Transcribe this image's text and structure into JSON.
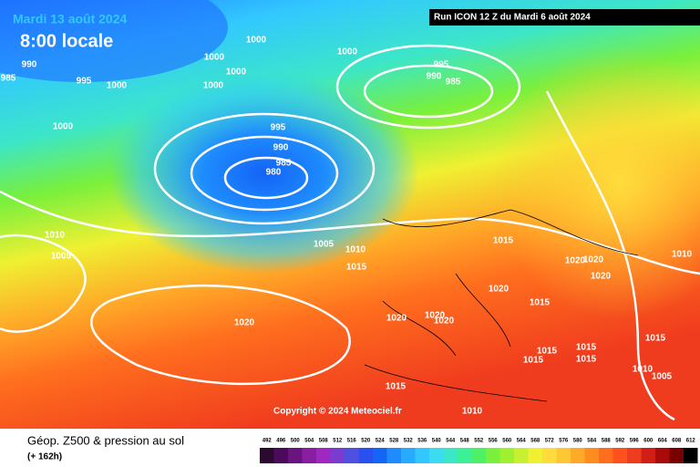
{
  "header": {
    "date": "Mardi 13 août 2024",
    "time": "8:00 locale",
    "run": "Run ICON 12 Z du Mardi 6 août 2024"
  },
  "copyright": "Copyright © 2024 Meteociel.fr",
  "footer": {
    "title": "Géop. Z500 & pression au sol",
    "lead": "(+ 162h)"
  },
  "legend": {
    "labels": [
      492,
      496,
      500,
      504,
      508,
      512,
      516,
      520,
      524,
      528,
      532,
      536,
      540,
      544,
      548,
      552,
      556,
      560,
      564,
      568,
      572,
      576,
      580,
      584,
      588,
      592,
      596,
      600,
      604,
      608,
      612
    ],
    "colors": [
      "#2a0a30",
      "#4b0a5a",
      "#6a1480",
      "#8a1ea0",
      "#a028c0",
      "#7a3cd0",
      "#5050e0",
      "#2a50f0",
      "#1464f5",
      "#1e8cff",
      "#28aaff",
      "#32c8ff",
      "#3cdcf0",
      "#3ce6c8",
      "#3cf096",
      "#50f064",
      "#78f03c",
      "#a0f032",
      "#c8f032",
      "#f0f032",
      "#ffdc3c",
      "#ffc832",
      "#ffaa28",
      "#ff8c1e",
      "#ff6e1e",
      "#ff501e",
      "#f03c1e",
      "#d21e14",
      "#aa0a0a",
      "#780000",
      "#000000"
    ]
  },
  "isobars": [
    "1000",
    "1000",
    "1000",
    "1000",
    "1000",
    "995",
    "990",
    "985",
    "1000",
    "1000",
    "995",
    "990",
    "985",
    "995",
    "990",
    "985",
    "980",
    "1010",
    "1005",
    "1005",
    "1010",
    "1015",
    "1015",
    "1020",
    "1020",
    "1020",
    "1010",
    "1020",
    "1015",
    "1020",
    "1020",
    "1020",
    "1020",
    "1015",
    "1015",
    "1015",
    "1015",
    "1015",
    "1010",
    "1005",
    "1015",
    "1010"
  ]
}
